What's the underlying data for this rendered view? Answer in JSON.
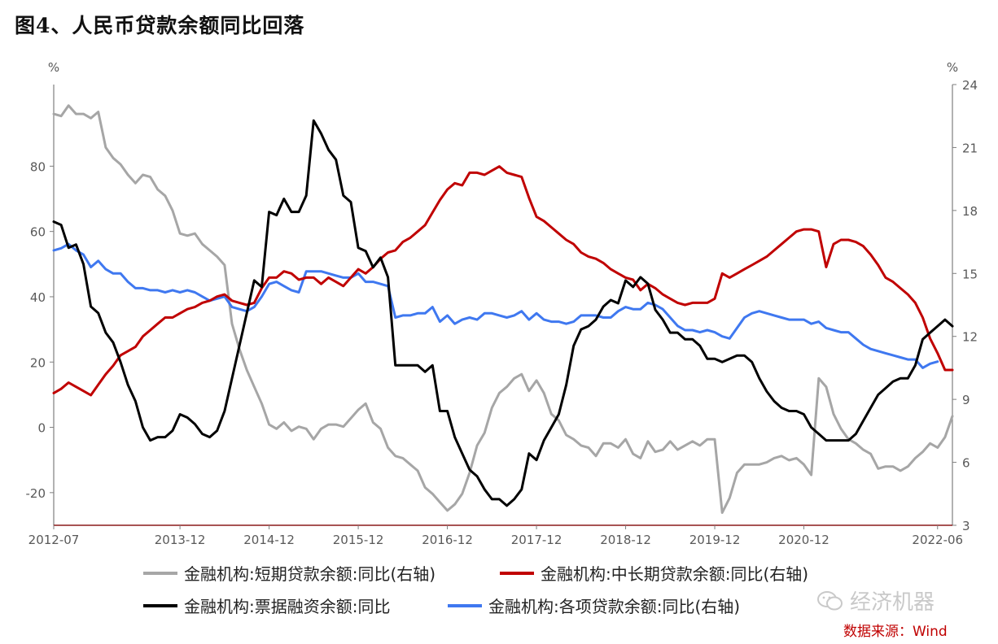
{
  "title": "图4、人民币贷款余额同比回落",
  "source": "数据来源：Wind",
  "watermark": "经济机器",
  "colors": {
    "short": "#a6a6a6",
    "long": "#c00000",
    "bill": "#000000",
    "total": "#3f78f0",
    "axis": "#7f7f7f"
  },
  "chart_data": {
    "type": "line",
    "left_axis": {
      "unit": "%",
      "ylim": [
        -30,
        105
      ],
      "ticks": [
        -20,
        0,
        20,
        40,
        60,
        80
      ]
    },
    "right_axis": {
      "unit": "%",
      "ylim": [
        3,
        24
      ],
      "ticks": [
        3,
        6,
        9,
        12,
        15,
        18,
        21,
        24
      ]
    },
    "x_ticks": [
      "2012-07",
      "2013-12",
      "2014-12",
      "2015-12",
      "2016-12",
      "2017-12",
      "2018-12",
      "2019-12",
      "2020-12",
      "2022-06"
    ],
    "x_tick_index": [
      0,
      17,
      29,
      41,
      53,
      65,
      77,
      89,
      101,
      119
    ],
    "legend_position": "bottom",
    "series": [
      {
        "name": "金融机构:短期贷款余额:同比(右轴)",
        "axis": "right",
        "values": [
          22.6,
          22.5,
          23.0,
          22.6,
          22.6,
          22.4,
          22.7,
          21.0,
          20.5,
          20.2,
          19.7,
          19.3,
          19.7,
          19.6,
          19.0,
          18.7,
          18.0,
          16.9,
          16.8,
          16.9,
          16.4,
          16.1,
          15.8,
          15.4,
          12.6,
          11.4,
          10.4,
          9.6,
          8.8,
          7.8,
          7.6,
          7.9,
          7.5,
          7.7,
          7.6,
          7.1,
          7.6,
          7.8,
          7.8,
          7.7,
          8.1,
          8.5,
          8.8,
          7.9,
          7.6,
          6.7,
          6.3,
          6.2,
          5.9,
          5.6,
          4.8,
          4.5,
          4.1,
          3.7,
          4.0,
          4.5,
          5.5,
          6.8,
          7.4,
          8.6,
          9.3,
          9.6,
          10.0,
          10.2,
          9.4,
          9.9,
          9.3,
          8.3,
          8.0,
          7.3,
          7.1,
          6.8,
          6.7,
          6.3,
          6.9,
          6.9,
          6.7,
          7.1,
          6.4,
          6.2,
          7.0,
          6.5,
          6.6,
          7.0,
          6.6,
          6.8,
          7.0,
          6.8,
          7.1,
          7.1,
          3.6,
          4.3,
          5.5,
          5.9,
          5.9,
          5.9,
          6.0,
          6.2,
          6.3,
          6.1,
          6.2,
          5.9,
          5.4,
          10.0,
          9.6,
          8.3,
          7.6,
          7.1,
          6.9,
          6.6,
          6.4,
          5.7,
          5.8,
          5.8,
          5.6,
          5.8,
          6.2,
          6.5,
          6.9,
          6.7,
          7.2,
          8.2
        ]
      },
      {
        "name": "金融机构:中长期贷款余额:同比(右轴)",
        "axis": "right",
        "values": [
          9.3,
          9.5,
          9.8,
          9.6,
          9.4,
          9.2,
          9.7,
          10.2,
          10.6,
          11.1,
          11.3,
          11.5,
          12.0,
          12.3,
          12.6,
          12.9,
          12.9,
          13.1,
          13.3,
          13.4,
          13.6,
          13.7,
          13.9,
          14.0,
          13.7,
          13.6,
          13.5,
          13.6,
          14.3,
          14.8,
          14.8,
          15.1,
          15.0,
          14.7,
          14.8,
          14.8,
          14.5,
          14.8,
          14.6,
          14.4,
          14.8,
          15.2,
          15.0,
          15.3,
          15.7,
          16.0,
          16.1,
          16.5,
          16.7,
          17.0,
          17.3,
          17.9,
          18.5,
          19.0,
          19.3,
          19.2,
          19.8,
          19.8,
          19.7,
          19.9,
          20.1,
          19.8,
          19.7,
          19.6,
          18.6,
          17.7,
          17.5,
          17.2,
          16.9,
          16.6,
          16.4,
          16.0,
          15.8,
          15.7,
          15.5,
          15.2,
          15.0,
          14.8,
          14.7,
          14.2,
          14.5,
          14.3,
          14.0,
          13.8,
          13.6,
          13.5,
          13.6,
          13.6,
          13.6,
          13.8,
          15.0,
          14.8,
          15.0,
          15.2,
          15.4,
          15.6,
          15.8,
          16.1,
          16.4,
          16.7,
          17.0,
          17.1,
          17.1,
          17.0,
          15.3,
          16.4,
          16.6,
          16.6,
          16.5,
          16.3,
          15.9,
          15.4,
          14.8,
          14.6,
          14.3,
          14.0,
          13.6,
          12.9,
          11.9,
          11.2,
          10.4,
          10.4
        ]
      },
      {
        "name": "金融机构:票据融资余额:同比",
        "axis": "left",
        "values": [
          63,
          62,
          55,
          56,
          50,
          37,
          35,
          29,
          26,
          20,
          13,
          8,
          0,
          -4,
          -3,
          -3,
          -1,
          4,
          3,
          1,
          -2,
          -3,
          -1,
          5,
          15,
          25,
          35,
          45,
          43,
          66,
          65,
          70,
          66,
          66,
          71,
          94,
          90,
          85,
          82,
          71,
          69,
          55,
          54,
          49,
          52,
          46,
          19,
          19,
          19,
          19,
          17,
          19,
          5,
          5,
          -3,
          -8,
          -13,
          -15,
          -19,
          -22,
          -22,
          -24,
          -22,
          -19,
          -8,
          -10,
          -4,
          0,
          4,
          13,
          25,
          30,
          31,
          33,
          37,
          39,
          38,
          45,
          43,
          46,
          44,
          36,
          33,
          29,
          29,
          27,
          27,
          25,
          21,
          21,
          20,
          21,
          22,
          22,
          20,
          15,
          11,
          8,
          6,
          5,
          5,
          4,
          0,
          -2,
          -4,
          -4,
          -4,
          -4,
          -2,
          2,
          6,
          10,
          12,
          14,
          15,
          15,
          19,
          27,
          29,
          31,
          33,
          31
        ]
      },
      {
        "name": "金融机构:各项贷款余额:同比(右轴)",
        "axis": "right",
        "values": [
          16.1,
          16.2,
          16.4,
          16.1,
          15.9,
          15.3,
          15.6,
          15.2,
          15.0,
          15.0,
          14.6,
          14.3,
          14.3,
          14.2,
          14.2,
          14.1,
          14.2,
          14.1,
          14.2,
          14.1,
          13.9,
          13.7,
          13.8,
          13.9,
          13.4,
          13.3,
          13.2,
          13.4,
          13.9,
          14.5,
          14.6,
          14.4,
          14.2,
          14.1,
          15.1,
          15.1,
          15.1,
          15.0,
          14.9,
          14.8,
          14.8,
          15.0,
          14.6,
          14.6,
          14.5,
          14.4,
          12.9,
          13.0,
          13.0,
          13.1,
          13.1,
          13.4,
          12.7,
          13.0,
          12.6,
          12.8,
          12.9,
          12.8,
          13.1,
          13.1,
          13.0,
          12.9,
          13.0,
          13.2,
          12.8,
          13.1,
          12.8,
          12.7,
          12.7,
          12.6,
          12.7,
          13.0,
          13.0,
          13.0,
          12.9,
          12.9,
          13.2,
          13.4,
          13.3,
          13.3,
          13.6,
          13.5,
          13.3,
          12.9,
          12.5,
          12.3,
          12.3,
          12.2,
          12.3,
          12.2,
          12.0,
          11.9,
          12.4,
          12.9,
          13.1,
          13.2,
          13.1,
          13.0,
          12.9,
          12.8,
          12.8,
          12.8,
          12.6,
          12.7,
          12.4,
          12.3,
          12.2,
          12.2,
          11.9,
          11.6,
          11.4,
          11.3,
          11.2,
          11.1,
          11.0,
          10.9,
          10.9,
          10.5,
          10.7,
          10.8
        ]
      }
    ]
  },
  "legend": [
    {
      "label": "金融机构:短期贷款余额:同比(右轴)",
      "color": "#a6a6a6"
    },
    {
      "label": "金融机构:中长期贷款余额:同比(右轴)",
      "color": "#c00000"
    },
    {
      "label": "金融机构:票据融资余额:同比",
      "color": "#000000"
    },
    {
      "label": "金融机构:各项贷款余额:同比(右轴)",
      "color": "#3f78f0"
    }
  ]
}
